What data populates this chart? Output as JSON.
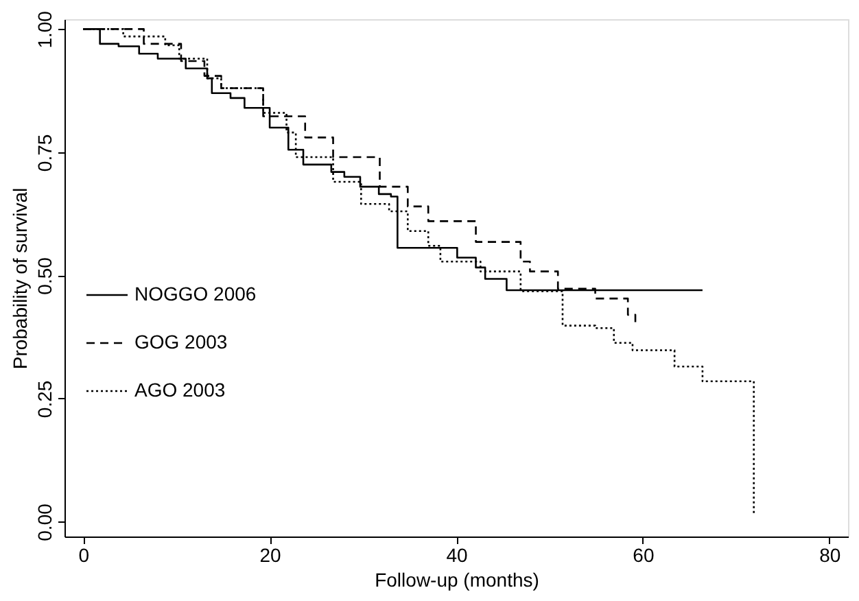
{
  "chart_data": {
    "type": "step",
    "xlabel": "Follow-up (months)",
    "ylabel": "Probability of survival",
    "xlim": [
      -2,
      82
    ],
    "xticks": [
      0,
      20,
      40,
      60,
      80
    ],
    "ylim": [
      -0.03,
      1.02
    ],
    "yticks": [
      {
        "value": 0,
        "label": "0.00"
      },
      {
        "value": 0.25,
        "label": "0.25"
      },
      {
        "value": 0.5,
        "label": "0.50"
      },
      {
        "value": 0.75,
        "label": "0.75"
      },
      {
        "value": 1,
        "label": "1.00"
      }
    ],
    "grid": false,
    "legend": "left",
    "marker": "none",
    "series": [
      {
        "name": "NOGGO 2006",
        "color": "#000000",
        "line_style": "solid",
        "x": [
          0,
          1.8,
          3.8,
          6,
          8,
          11,
          13.3,
          13.8,
          15.8,
          17.3,
          20,
          22,
          23.6,
          26.6,
          28,
          29.7,
          31.7,
          33,
          33.7,
          40.1,
          42.1,
          43.1,
          45.4,
          66.4
        ],
        "values": [
          1.0,
          0.97,
          0.965,
          0.95,
          0.94,
          0.92,
          0.9,
          0.87,
          0.86,
          0.84,
          0.8,
          0.755,
          0.725,
          0.71,
          0.7,
          0.68,
          0.665,
          0.66,
          0.556,
          0.536,
          0.516,
          0.493,
          0.47,
          0.47
        ]
      },
      {
        "name": "GOG 2003",
        "color": "#000000",
        "line_style": "dashed",
        "x": [
          0,
          6.5,
          10.5,
          13,
          14.8,
          19.3,
          23.8,
          26.8,
          31.8,
          34.8,
          37,
          42.1,
          46.9,
          47.9,
          50.9,
          54.9,
          58.4,
          59.2
        ],
        "values": [
          1.0,
          0.97,
          0.935,
          0.905,
          0.88,
          0.823,
          0.78,
          0.74,
          0.68,
          0.64,
          0.61,
          0.568,
          0.528,
          0.508,
          0.473,
          0.453,
          0.42,
          0.398
        ]
      },
      {
        "name": "AGO 2003",
        "color": "#000000",
        "line_style": "dotted",
        "x": [
          0,
          4.3,
          8.8,
          10.3,
          13.3,
          14.8,
          19.3,
          21.8,
          22.8,
          26.8,
          29.8,
          32.8,
          34.8,
          37,
          38.3,
          42.6,
          46.9,
          51.4,
          54.9,
          56.9,
          58.9,
          63.4,
          66.4,
          71.9,
          71.9
        ],
        "values": [
          1.0,
          0.985,
          0.967,
          0.94,
          0.9,
          0.88,
          0.83,
          0.79,
          0.74,
          0.69,
          0.645,
          0.63,
          0.59,
          0.56,
          0.528,
          0.508,
          0.468,
          0.398,
          0.393,
          0.363,
          0.348,
          0.315,
          0.285,
          0.285,
          0.012
        ]
      }
    ]
  }
}
